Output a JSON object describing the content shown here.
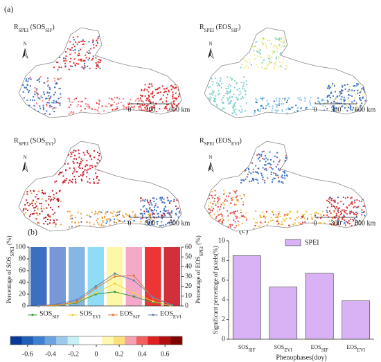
{
  "panel_labels": [
    "(a)",
    "(b)",
    "(c)"
  ],
  "north": "N",
  "scale_labels": [
    "0",
    "300",
    "600 km"
  ],
  "maps": [
    {
      "title": [
        {
          "t": "R"
        },
        {
          "t": "SPEI",
          "sub": true
        },
        {
          "t": " (SOS"
        },
        {
          "t": "SIF",
          "sub": true
        },
        {
          "t": ")"
        }
      ],
      "colors": [
        "#e03030",
        "#3a6fc4",
        "#f08080",
        "#e03030"
      ]
    },
    {
      "title": [
        {
          "t": "R"
        },
        {
          "t": "SPEI",
          "sub": true
        },
        {
          "t": " (EOS"
        },
        {
          "t": "SIF",
          "sub": true
        },
        {
          "t": ")"
        }
      ],
      "colors": [
        "#f3e98a",
        "#7fd3c8",
        "#8cc8e8",
        "#3a6fc4"
      ]
    },
    {
      "title": [
        {
          "t": "R"
        },
        {
          "t": "SPEI",
          "sub": true
        },
        {
          "t": " (SOS"
        },
        {
          "t": "EVI",
          "sub": true
        },
        {
          "t": ")"
        }
      ],
      "colors": [
        "#d02030",
        "#c01828",
        "#f0a040",
        "#3a6fc4"
      ]
    },
    {
      "title": [
        {
          "t": "R"
        },
        {
          "t": "SPEI",
          "sub": true
        },
        {
          "t": " (EOS"
        },
        {
          "t": "EVI",
          "sub": true
        },
        {
          "t": ")"
        }
      ],
      "colors": [
        "#3a6fc4",
        "#e05050",
        "#f0c040",
        "#e03030"
      ]
    }
  ],
  "chart_data": [
    {
      "type": "bar-line",
      "categories": [
        null,
        null,
        null,
        null,
        null,
        null,
        null,
        null
      ],
      "bar_values": [
        100,
        100,
        100,
        100,
        100,
        100,
        100,
        100
      ],
      "bar_colors": [
        "#3d6fc0",
        "#7698d6",
        "#86b6e3",
        "#8fdcf5",
        "#fdf8a8",
        "#f5a9c8",
        "#ee3535",
        "#d0303a"
      ],
      "ylim": [
        0,
        100
      ],
      "yticks": [
        0,
        20,
        40,
        60,
        80,
        100
      ],
      "y2lim": [
        0,
        60
      ],
      "y2ticks": [
        0,
        10,
        20,
        30,
        40,
        50,
        60
      ],
      "ylabel": [
        {
          "t": "Percentage of SOS"
        },
        {
          "t": "SPEI",
          "sub": true
        },
        {
          "t": " (%)"
        }
      ],
      "y2label": [
        {
          "t": "Percentage of EOS"
        },
        {
          "t": "SPEI",
          "sub": true
        },
        {
          "t": " (%)"
        }
      ],
      "series": [
        {
          "name": [
            {
              "t": "SOS"
            },
            {
              "t": "SIF",
              "sub": true
            }
          ],
          "color": "#3a9a3a",
          "values": [
            0,
            1,
            5,
            20,
            24,
            16,
            6,
            1
          ]
        },
        {
          "name": [
            {
              "t": "SOS"
            },
            {
              "t": "EVI",
              "sub": true
            }
          ],
          "color": "#f0d040",
          "values": [
            0,
            1,
            6,
            22,
            38,
            22,
            8,
            0
          ]
        },
        {
          "name": [
            {
              "t": "EOS"
            },
            {
              "t": "SIF",
              "sub": true
            }
          ],
          "color": "#e07a30",
          "axis": "y2",
          "values": [
            0,
            1,
            4,
            18,
            30,
            31,
            8,
            1
          ]
        },
        {
          "name": [
            {
              "t": "EOS"
            },
            {
              "t": "EVI",
              "sub": true
            }
          ],
          "color": "#6a7fb0",
          "axis": "y2",
          "values": [
            0,
            2,
            6,
            20,
            33,
            26,
            9,
            1
          ]
        }
      ],
      "colorbar": {
        "colors": [
          "#08399a",
          "#1f5fb8",
          "#3d7fd0",
          "#6aa3e0",
          "#9cc8ec",
          "#c6f0f2",
          "#ffffff",
          "#ffffff",
          "#fdf7b0",
          "#f9e07a",
          "#f6a0b0",
          "#f06060",
          "#e02020",
          "#b01010",
          "#800000"
        ],
        "lim": [
          -0.75,
          0.75
        ],
        "ticks": [
          -0.6,
          -0.4,
          -0.2,
          0,
          0.2,
          0.4,
          0.6
        ]
      }
    },
    {
      "type": "bar",
      "categories": [
        [
          {
            "t": "SOS"
          },
          {
            "t": "SIF",
            "sub": true
          }
        ],
        [
          {
            "t": "SOS"
          },
          {
            "t": "EVI",
            "sub": true
          }
        ],
        [
          {
            "t": "EOS"
          },
          {
            "t": "SIF",
            "sub": true
          }
        ],
        [
          {
            "t": "EOS"
          },
          {
            "t": "EVI",
            "sub": true
          }
        ]
      ],
      "series": [
        {
          "name": "SPEI",
          "color": "#d8b2f5",
          "values": [
            8.5,
            5.3,
            6.7,
            3.9
          ]
        }
      ],
      "ylim": [
        0,
        10
      ],
      "yticks": [
        0,
        2,
        4,
        6,
        8,
        10
      ],
      "ylabel": "Significant percentage of pixels(%)",
      "xlabel": "Phenophases(doy)"
    }
  ]
}
